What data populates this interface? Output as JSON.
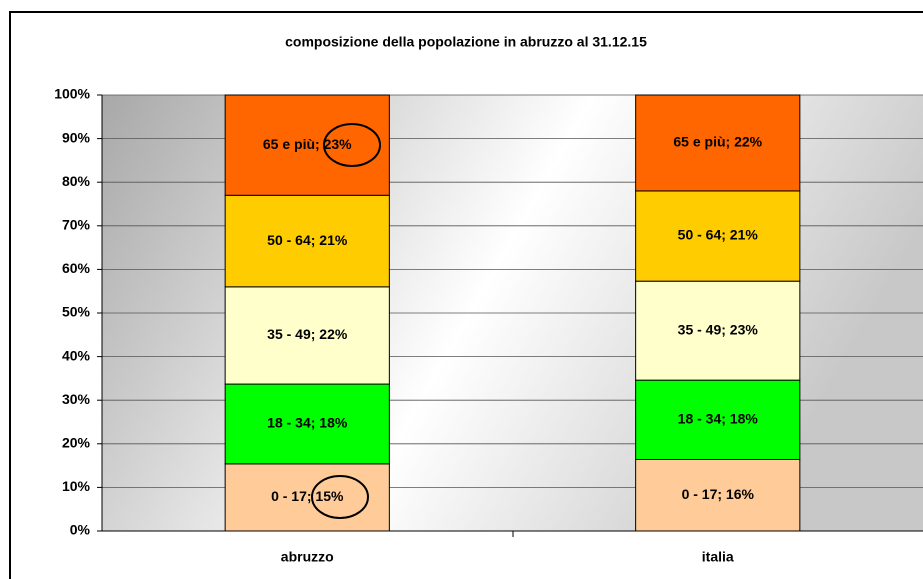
{
  "chart_data": {
    "type": "stacked_bar",
    "title": "composizione della popolazione in abruzzo al 31.12.15",
    "categories": [
      "abruzzo",
      "italia"
    ],
    "series": [
      {
        "color": "#FFCC99",
        "values": [
          15.4,
          16.4
        ],
        "value_labels": [
          "0 - 17; 15%",
          "0 - 17; 16%"
        ]
      },
      {
        "color": "#00FF00",
        "values": [
          18.3,
          18.2
        ],
        "value_labels": [
          "18 - 34; 18%",
          "18 - 34; 18%"
        ]
      },
      {
        "color": "#FFFFCC",
        "values": [
          22.3,
          22.7
        ],
        "value_labels": [
          "35 - 49; 22%",
          "35 - 49; 23%"
        ]
      },
      {
        "color": "#FFCC00",
        "values": [
          21.0,
          20.7
        ],
        "value_labels": [
          "50 - 64; 21%",
          "50 - 64; 21%"
        ]
      },
      {
        "color": "#FF6600",
        "values": [
          23.0,
          22.0
        ],
        "value_labels": [
          "65 e più; 23%",
          "65 e più; 22%"
        ]
      }
    ],
    "ylim": [
      0,
      100
    ],
    "yticks": [
      {
        "value": 0,
        "label": "0%"
      },
      {
        "value": 10,
        "label": "10%"
      },
      {
        "value": 20,
        "label": "20%"
      },
      {
        "value": 30,
        "label": "30%"
      },
      {
        "value": 40,
        "label": "40%"
      },
      {
        "value": 50,
        "label": "50%"
      },
      {
        "value": 60,
        "label": "60%"
      },
      {
        "value": 70,
        "label": "70%"
      },
      {
        "value": 80,
        "label": "80%"
      },
      {
        "value": 90,
        "label": "90%"
      },
      {
        "value": 100,
        "label": "100%"
      }
    ],
    "grid": true
  }
}
